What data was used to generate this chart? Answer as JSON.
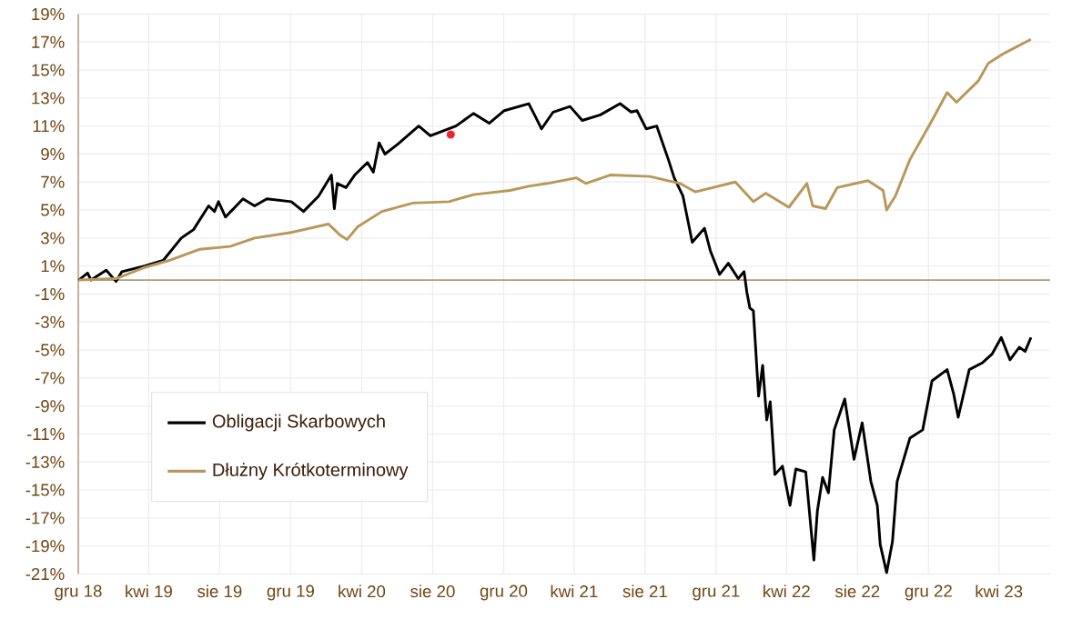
{
  "chart_data": {
    "type": "line",
    "xlim": [
      "2018-12-01",
      "2023-06-28"
    ],
    "xticks": [
      {
        "value": "2018-12-01",
        "label": "gru 18"
      },
      {
        "value": "2019-04-01",
        "label": "kwi 19"
      },
      {
        "value": "2019-08-01",
        "label": "sie 19"
      },
      {
        "value": "2019-12-01",
        "label": "gru 19"
      },
      {
        "value": "2020-04-01",
        "label": "kwi 20"
      },
      {
        "value": "2020-08-01",
        "label": "sie 20"
      },
      {
        "value": "2020-12-01",
        "label": "gru 20"
      },
      {
        "value": "2021-04-01",
        "label": "kwi 21"
      },
      {
        "value": "2021-08-01",
        "label": "sie 21"
      },
      {
        "value": "2021-12-01",
        "label": "gru 21"
      },
      {
        "value": "2022-04-01",
        "label": "kwi 22"
      },
      {
        "value": "2022-08-01",
        "label": "sie 22"
      },
      {
        "value": "2022-12-01",
        "label": "gru 22"
      },
      {
        "value": "2023-04-01",
        "label": "kwi 23"
      }
    ],
    "ylim": [
      -21,
      19
    ],
    "yticks": [
      {
        "value": -21,
        "label": "-21%"
      },
      {
        "value": -19,
        "label": "-19%"
      },
      {
        "value": -17,
        "label": "-17%"
      },
      {
        "value": -15,
        "label": "-15%"
      },
      {
        "value": -13,
        "label": "-13%"
      },
      {
        "value": -11,
        "label": "-11%"
      },
      {
        "value": -9,
        "label": "-9%"
      },
      {
        "value": -7,
        "label": "-7%"
      },
      {
        "value": -5,
        "label": "-5%"
      },
      {
        "value": -3,
        "label": "-3%"
      },
      {
        "value": -1,
        "label": "-1%"
      },
      {
        "value": 1,
        "label": "1%"
      },
      {
        "value": 3,
        "label": "3%"
      },
      {
        "value": 5,
        "label": "5%"
      },
      {
        "value": 7,
        "label": "7%"
      },
      {
        "value": 9,
        "label": "9%"
      },
      {
        "value": 11,
        "label": "11%"
      },
      {
        "value": 13,
        "label": "13%"
      },
      {
        "value": 15,
        "label": "15%"
      },
      {
        "value": 17,
        "label": "17%"
      },
      {
        "value": 19,
        "label": "19%"
      }
    ],
    "grid": true,
    "legend": "left",
    "ref_lines": [
      {
        "axis": "y",
        "value": 0,
        "label": null,
        "color": "#b39b7b"
      }
    ],
    "series": [
      {
        "name": "Obligacji Skarbowych",
        "color": "#000000",
        "x": [
          "2018-12-02",
          "2018-12-17",
          "2018-12-23",
          "2019-01-18",
          "2019-02-04",
          "2019-02-14",
          "2019-03-25",
          "2019-04-26",
          "2019-05-27",
          "2019-06-17",
          "2019-07-13",
          "2019-07-23",
          "2019-07-30",
          "2019-08-11",
          "2019-09-10",
          "2019-09-30",
          "2019-10-21",
          "2019-12-02",
          "2019-12-23",
          "2020-01-18",
          "2020-02-09",
          "2020-02-14",
          "2020-02-19",
          "2020-03-05",
          "2020-03-20",
          "2020-04-11",
          "2020-04-21",
          "2020-05-01",
          "2020-05-11",
          "2020-06-02",
          "2020-07-08",
          "2020-07-28",
          "2020-09-10",
          "2020-10-10",
          "2020-11-06",
          "2020-12-02",
          "2021-01-13",
          "2021-01-23",
          "2021-02-04",
          "2021-02-14",
          "2021-02-24",
          "2021-03-25",
          "2021-04-15",
          "2021-05-16",
          "2021-06-19",
          "2021-07-08",
          "2021-07-18",
          "2021-08-03",
          "2021-08-21",
          "2021-09-10",
          "2021-09-20",
          "2021-10-05",
          "2021-10-21",
          "2021-11-11",
          "2021-11-21",
          "2021-12-07",
          "2021-12-22",
          "2022-01-08",
          "2022-01-18",
          "2022-01-23",
          "2022-01-28",
          "2022-02-03",
          "2022-02-12",
          "2022-02-19",
          "2022-02-26",
          "2022-03-04",
          "2022-03-12",
          "2022-03-25",
          "2022-04-07",
          "2022-04-17",
          "2022-05-04",
          "2022-05-18",
          "2022-05-24",
          "2022-06-02",
          "2022-06-12",
          "2022-06-22",
          "2022-07-10",
          "2022-07-26",
          "2022-08-09",
          "2022-08-24",
          "2022-09-04",
          "2022-09-09",
          "2022-09-20",
          "2022-09-30",
          "2022-10-08",
          "2022-10-30",
          "2022-11-21",
          "2022-12-07",
          "2023-01-02",
          "2023-01-13",
          "2023-01-21",
          "2023-02-09",
          "2023-03-04",
          "2023-03-20",
          "2023-04-05",
          "2023-04-20",
          "2023-05-06",
          "2023-05-16",
          "2023-05-26"
        ],
        "values": [
          0,
          0.5,
          0,
          0.7,
          -0.1,
          0.6,
          1.0,
          1.4,
          3.0,
          3.6,
          5.3,
          4.9,
          5.6,
          4.5,
          5.8,
          5.3,
          5.8,
          5.6,
          4.9,
          6.0,
          7.5,
          5.1,
          6.9,
          6.6,
          7.5,
          8.4,
          7.7,
          9.8,
          9.0,
          9.7,
          11.0,
          10.3,
          11.0,
          11.9,
          11.2,
          12.1,
          12.6,
          11.8,
          10.8,
          11.4,
          12.0,
          12.4,
          11.4,
          11.8,
          12.6,
          12.0,
          12.1,
          10.8,
          11.0,
          8.6,
          7.3,
          6.0,
          2.7,
          3.7,
          2.1,
          0.4,
          1.2,
          0.1,
          0.6,
          -0.9,
          -2.0,
          -2.2,
          -8.3,
          -6.1,
          -10.0,
          -8.7,
          -13.9,
          -13.3,
          -16.1,
          -13.5,
          -13.7,
          -20.0,
          -16.5,
          -14.1,
          -15.2,
          -10.7,
          -8.5,
          -12.8,
          -10.2,
          -14.4,
          -16.1,
          -18.9,
          -20.9,
          -18.7,
          -14.4,
          -11.3,
          -10.7,
          -7.2,
          -6.4,
          -8.1,
          -9.8,
          -6.4,
          -5.9,
          -5.3,
          -4.1,
          -5.7,
          -4.8,
          -5.1,
          -4.1
        ]
      },
      {
        "name": "Dłużny Krótkoterminowy",
        "color": "#b8985a",
        "x": [
          "2018-12-02",
          "2019-02-04",
          "2019-03-25",
          "2019-05-06",
          "2019-06-28",
          "2019-08-19",
          "2019-09-30",
          "2019-12-02",
          "2020-02-04",
          "2020-02-14",
          "2020-02-24",
          "2020-03-07",
          "2020-03-25",
          "2020-05-06",
          "2020-06-28",
          "2020-08-29",
          "2020-10-10",
          "2020-12-12",
          "2021-01-13",
          "2021-02-14",
          "2021-04-05",
          "2021-04-21",
          "2021-06-02",
          "2021-08-09",
          "2021-09-30",
          "2021-10-26",
          "2022-01-03",
          "2022-02-03",
          "2022-02-24",
          "2022-04-05",
          "2022-05-06",
          "2022-05-16",
          "2022-06-07",
          "2022-06-27",
          "2022-08-19",
          "2022-09-14",
          "2022-09-20",
          "2022-10-05",
          "2022-10-30",
          "2022-12-07",
          "2023-01-02",
          "2023-01-18",
          "2023-02-24",
          "2023-03-14",
          "2023-04-10",
          "2023-05-26"
        ],
        "values": [
          0,
          0.1,
          0.9,
          1.4,
          2.2,
          2.4,
          3.0,
          3.4,
          4.0,
          3.6,
          3.2,
          2.9,
          3.8,
          4.9,
          5.5,
          5.6,
          6.1,
          6.4,
          6.7,
          6.9,
          7.3,
          6.9,
          7.5,
          7.4,
          6.9,
          6.3,
          7.0,
          5.6,
          6.2,
          5.2,
          6.9,
          5.3,
          5.1,
          6.6,
          7.1,
          6.4,
          5.0,
          6.0,
          8.6,
          11.4,
          13.4,
          12.7,
          14.2,
          15.5,
          16.2,
          17.2
        ]
      },
      {
        "type": "scatter",
        "color": "#e8262a",
        "x": [
          "2020-09-01"
        ],
        "values": [
          10.4
        ]
      }
    ]
  }
}
